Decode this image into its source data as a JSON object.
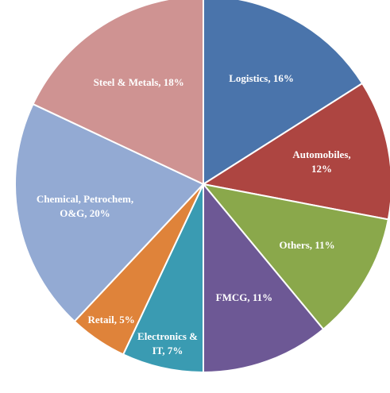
{
  "chart_data": {
    "type": "pie",
    "values": [
      16,
      12,
      11,
      11,
      7,
      5,
      20,
      18
    ],
    "value_labels": [
      "Logistics, 16%",
      "Automobiles, 12%",
      "Others, 11%",
      "FMCG, 11%",
      "Electronics &\nIT, 7%",
      "Retail, 5%",
      "Chemical, Petrochem,\nO&G, 20%",
      "Steel & Metals, 18%"
    ],
    "colors": [
      "#4a74ab",
      "#ad4541",
      "#8aa84b",
      "#6d5895",
      "#3a9bb2",
      "#df833a",
      "#93aad3",
      "#cf9392"
    ]
  }
}
